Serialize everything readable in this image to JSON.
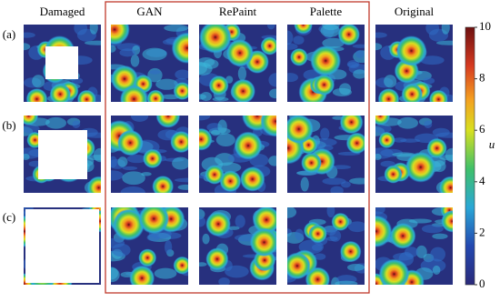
{
  "columns": [
    "Damaged",
    "GAN",
    "RePaint",
    "Palette",
    "Original"
  ],
  "rows": [
    "(a)",
    "(b)",
    "(c)"
  ],
  "colorbar": {
    "label": "u",
    "lim": [
      0,
      10
    ],
    "ticks": [
      0,
      2,
      4,
      6,
      8,
      10
    ]
  }
}
